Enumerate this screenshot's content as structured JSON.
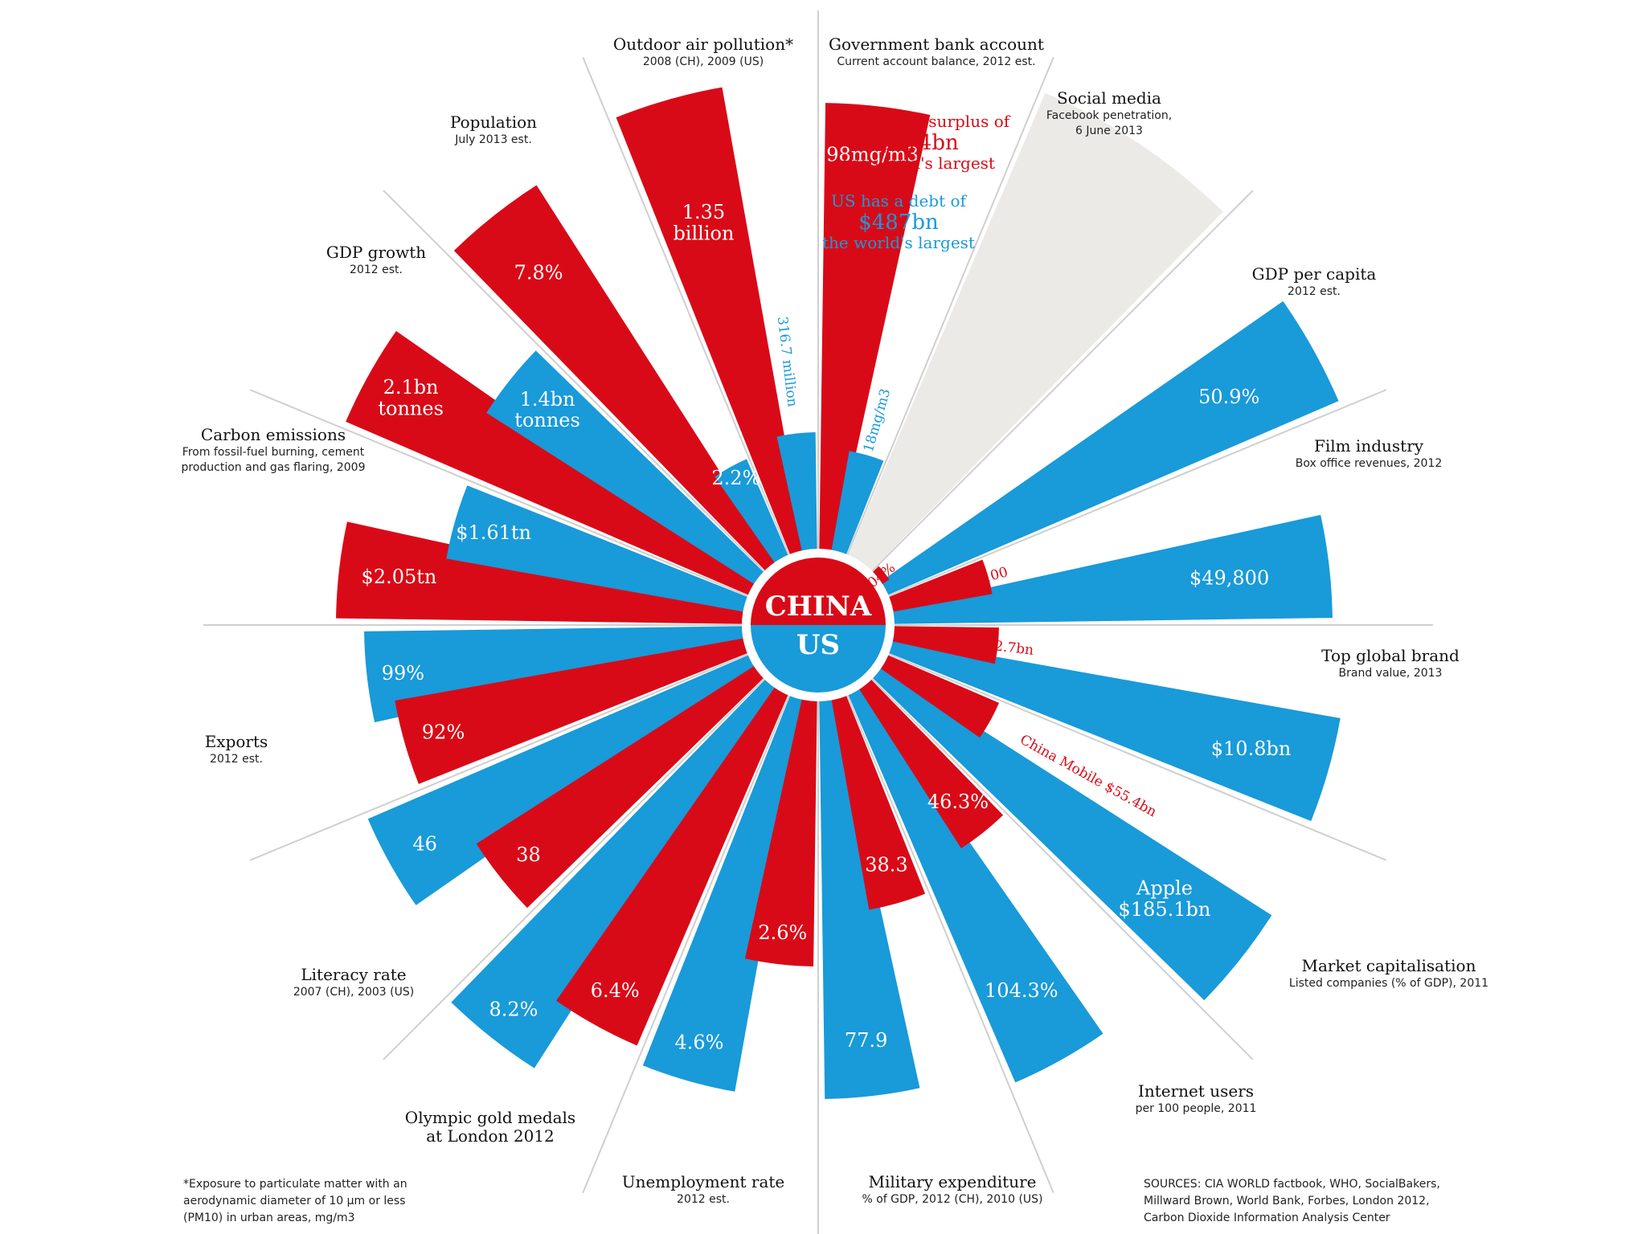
{
  "colors": {
    "china": "#d90a17",
    "us": "#199ad9",
    "divider": "#cfcfcf",
    "balance_bg": "#eceae6"
  },
  "center": {
    "top": "CHINA",
    "bottom": "US"
  },
  "chart_data": {
    "type": "radial-bar",
    "categories": [
      {
        "id": "air",
        "title": "Outdoor air pollution*",
        "subtitle": [
          "2008 (CH), 2009 (US)"
        ],
        "china": 98,
        "us": 18,
        "china_label": "98mg/m3",
        "us_label": "18mg/m3"
      },
      {
        "id": "balance",
        "title": "Government bank account",
        "subtitle": [
          "Current account balance, 2012 est."
        ],
        "china_text": [
          "China has a surplus of",
          "$214bn",
          "the world's largest"
        ],
        "us_text": [
          "US has a debt of",
          "$487bn",
          "the world's largest"
        ]
      },
      {
        "id": "social",
        "title": "Social media",
        "subtitle": [
          "Facebook penetration,",
          "6 June 2013"
        ],
        "china": 0.04,
        "us": 50.9,
        "china_label": "0.04%",
        "us_label": "50.9%"
      },
      {
        "id": "gdppc",
        "title": "GDP per capita",
        "subtitle": [
          "2012 est."
        ],
        "china": 9100,
        "us": 49800,
        "china_label": "$9,100",
        "us_label": "$49,800"
      },
      {
        "id": "film",
        "title": "Film industry",
        "subtitle": [
          "Box office revenues, 2012"
        ],
        "china": 2.7,
        "us": 10.8,
        "china_label": "$2.7bn",
        "us_label": "$10.8bn"
      },
      {
        "id": "brand",
        "title": "Top global brand",
        "subtitle": [
          "Brand value, 2013"
        ],
        "china": 55.4,
        "us": 185.1,
        "china_label": "China Mobile $55.4bn",
        "us_label": [
          "Apple",
          "$185.1bn"
        ]
      },
      {
        "id": "market",
        "title": "Market capitalisation",
        "subtitle": [
          "Listed companies (% of GDP), 2011"
        ],
        "china": 46.3,
        "us": 104.3,
        "china_label": "46.3%",
        "us_label": "104.3%"
      },
      {
        "id": "internet",
        "title": "Internet users",
        "subtitle": [
          "per 100 people, 2011"
        ],
        "china": 38.3,
        "us": 77.9,
        "china_label": "38.3",
        "us_label": "77.9"
      },
      {
        "id": "military",
        "title": "Military expenditure",
        "subtitle": [
          "% of GDP, 2012 (CH), 2010 (US)"
        ],
        "china": 2.6,
        "us": 4.6,
        "china_label": "2.6%",
        "us_label": "4.6%"
      },
      {
        "id": "unemployment",
        "title": "Unemployment rate",
        "subtitle": [
          "2012 est."
        ],
        "china": 6.4,
        "us": 8.2,
        "china_label": "6.4%",
        "us_label": "8.2%"
      },
      {
        "id": "olympic",
        "title": [
          "Olympic gold medals",
          "at London 2012"
        ],
        "subtitle": [],
        "china": 38,
        "us": 46,
        "china_label": "38",
        "us_label": "46"
      },
      {
        "id": "literacy",
        "title": "Literacy rate",
        "subtitle": [
          "2007 (CH), 2003 (US)"
        ],
        "china": 92,
        "us": 99,
        "china_label": "92%",
        "us_label": "99%"
      },
      {
        "id": "exports",
        "title": "Exports",
        "subtitle": [
          "2012 est."
        ],
        "china": 2.05,
        "us": 1.61,
        "china_label": "$2.05tn",
        "us_label": "$1.61tn"
      },
      {
        "id": "carbon",
        "title": "Carbon emissions",
        "subtitle": [
          "From fossil-fuel burning, cement",
          "production and gas flaring, 2009"
        ],
        "china": 2.1,
        "us": 1.4,
        "china_label": [
          "2.1bn",
          "tonnes"
        ],
        "us_label": [
          "1.4bn",
          "tonnes"
        ]
      },
      {
        "id": "gdpgrowth",
        "title": "GDP growth",
        "subtitle": [
          "2012 est."
        ],
        "china": 7.8,
        "us": 2.2,
        "china_label": "7.8%",
        "us_label": "2.2%"
      },
      {
        "id": "population",
        "title": "Population",
        "subtitle": [
          "July 2013 est."
        ],
        "china": 1350,
        "us": 316.7,
        "china_label": [
          "1.35",
          "billion"
        ],
        "us_label": "316.7 million"
      }
    ]
  },
  "footnote": [
    "*Exposure to particulate matter with an",
    "aerodynamic diameter of 10 µm or less",
    "(PM10) in urban areas, mg/m3"
  ],
  "sources": [
    "SOURCES: CIA WORLD factbook, WHO,  SocialBakers,",
    "Millward Brown, World Bank, Forbes, London 2012,",
    "Carbon Dioxide Information Analysis Center"
  ]
}
